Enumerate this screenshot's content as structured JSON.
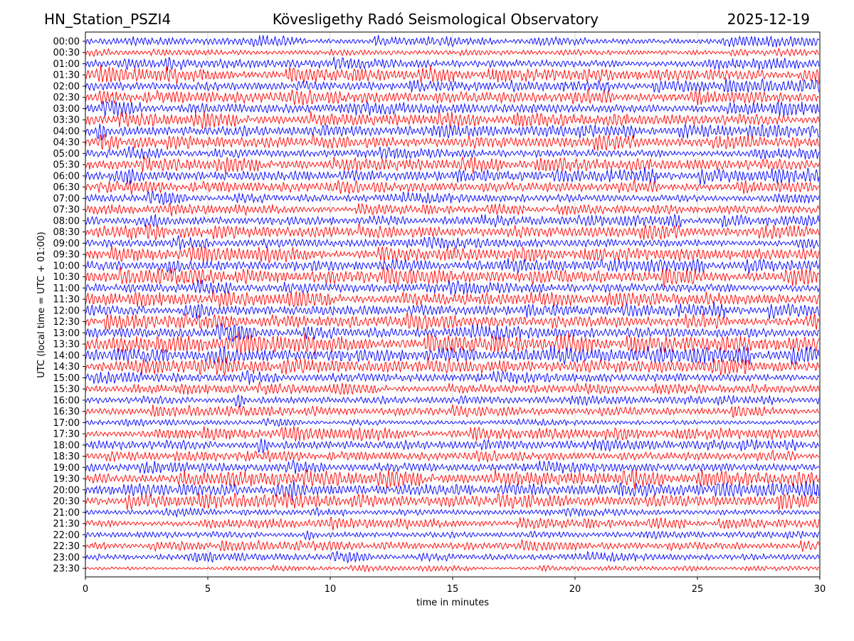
{
  "header": {
    "station": "HN_Station_PSZI4",
    "observatory": "Kövesligethy Radó Seismological Observatory",
    "date": "2025-12-19"
  },
  "chart_data": {
    "type": "line",
    "title": "Kövesligethy Radó Seismological Observatory",
    "xlabel": "time in minutes",
    "ylabel": "UTC (local time = UTC + 01:00)",
    "xlim": [
      0,
      30
    ],
    "xticks": [
      "0",
      "5",
      "10",
      "15",
      "20",
      "25",
      "30"
    ],
    "grid": "vertical dotted",
    "colors": [
      "#0000ff",
      "#ff0000"
    ],
    "rows": [
      "00:00",
      "00:30",
      "01:00",
      "01:30",
      "02:00",
      "02:30",
      "03:00",
      "03:30",
      "04:00",
      "04:30",
      "05:00",
      "05:30",
      "06:00",
      "06:30",
      "07:00",
      "07:30",
      "08:00",
      "08:30",
      "09:00",
      "09:30",
      "10:00",
      "10:30",
      "11:00",
      "11:30",
      "12:00",
      "12:30",
      "13:00",
      "13:30",
      "14:00",
      "14:30",
      "15:00",
      "15:30",
      "16:00",
      "16:30",
      "17:00",
      "17:30",
      "18:00",
      "18:30",
      "19:00",
      "19:30",
      "20:00",
      "20:30",
      "21:00",
      "21:30",
      "22:00",
      "22:30",
      "23:00",
      "23:30"
    ],
    "activity": [
      0.5,
      0.35,
      0.6,
      0.7,
      0.6,
      0.7,
      0.7,
      0.7,
      0.7,
      0.7,
      0.6,
      0.7,
      0.7,
      0.6,
      0.6,
      0.5,
      0.6,
      0.7,
      0.6,
      0.7,
      0.7,
      0.8,
      0.7,
      0.7,
      0.7,
      0.7,
      0.8,
      0.9,
      0.9,
      0.8,
      0.6,
      0.5,
      0.5,
      0.5,
      0.35,
      0.6,
      0.6,
      0.5,
      0.6,
      0.8,
      0.8,
      0.7,
      0.4,
      0.5,
      0.4,
      0.45,
      0.5,
      0.25
    ]
  }
}
